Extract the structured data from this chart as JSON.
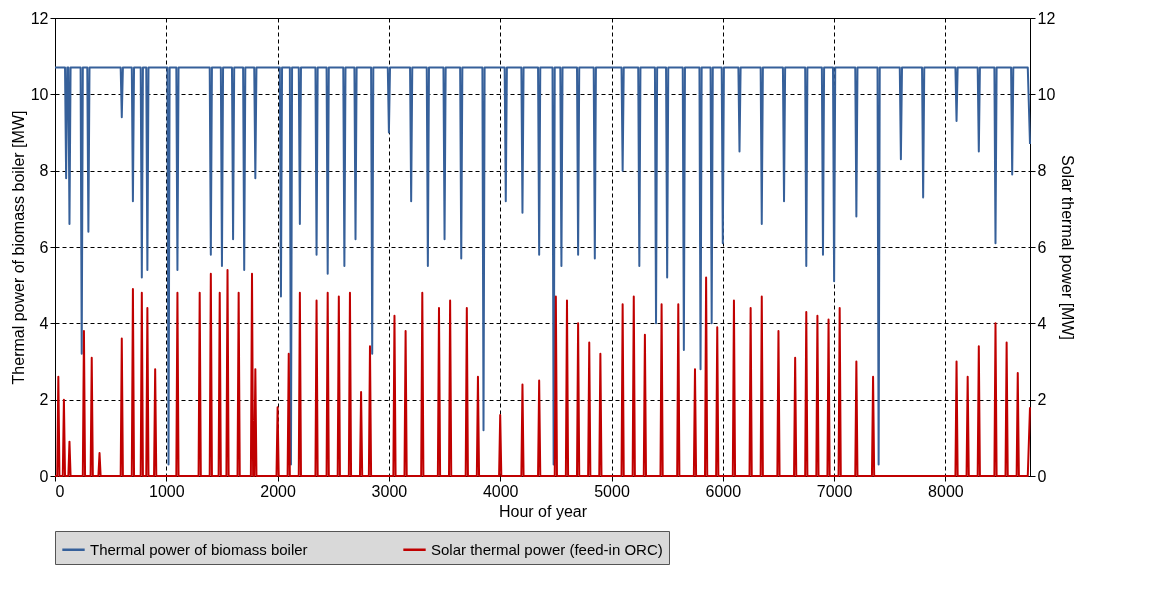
{
  "chart_data": {
    "type": "line",
    "xlabel": "Hour of year",
    "ylabel": "Thermal power of biomass boiler [MW]",
    "y2label": "Solar thermal power [MW]",
    "xlim": [
      0,
      8760
    ],
    "xticks": [
      0,
      1000,
      2000,
      3000,
      4000,
      5000,
      6000,
      7000,
      8000
    ],
    "ylim": [
      0,
      12
    ],
    "yticks": [
      0,
      2,
      4,
      6,
      8,
      10,
      12
    ],
    "y2lim": [
      0,
      12
    ],
    "y2ticks": [
      0,
      2,
      4,
      6,
      8,
      10,
      12
    ],
    "grid": true,
    "legend": "bottom",
    "line_style": "solid",
    "marker": "none",
    "series": [
      {
        "name": "Thermal power of biomass boiler",
        "color": "#36609a",
        "x": [
          0,
          90,
          100,
          110,
          120,
          130,
          140,
          230,
          240,
          250,
          290,
          300,
          310,
          590,
          600,
          610,
          690,
          700,
          710,
          770,
          780,
          790,
          820,
          830,
          840,
          1010,
          1020,
          1030,
          1090,
          1100,
          1110,
          1390,
          1400,
          1410,
          1490,
          1500,
          1510,
          1590,
          1600,
          1610,
          1690,
          1700,
          1710,
          1790,
          1800,
          1810,
          2020,
          2030,
          2040,
          2110,
          2120,
          2130,
          2190,
          2200,
          2210,
          2340,
          2350,
          2360,
          2440,
          2450,
          2460,
          2590,
          2600,
          2610,
          2690,
          2700,
          2710,
          2840,
          2850,
          2860,
          2990,
          3000,
          3010,
          3190,
          3200,
          3210,
          3340,
          3350,
          3360,
          3490,
          3500,
          3510,
          3640,
          3650,
          3660,
          3840,
          3850,
          3860,
          4040,
          4050,
          4060,
          4190,
          4200,
          4210,
          4340,
          4350,
          4360,
          4470,
          4480,
          4490,
          4540,
          4550,
          4560,
          4690,
          4700,
          4710,
          4840,
          4850,
          4860,
          5090,
          5100,
          5110,
          5240,
          5250,
          5260,
          5390,
          5400,
          5410,
          5490,
          5500,
          5510,
          5640,
          5650,
          5660,
          5790,
          5800,
          5810,
          5890,
          5900,
          5910,
          5990,
          6000,
          6010,
          6140,
          6150,
          6160,
          6340,
          6350,
          6360,
          6540,
          6550,
          6560,
          6740,
          6750,
          6760,
          6890,
          6900,
          6910,
          6990,
          7000,
          7010,
          7190,
          7200,
          7210,
          7390,
          7400,
          7410,
          7590,
          7600,
          7610,
          7790,
          7800,
          7810,
          8090,
          8100,
          8110,
          8290,
          8300,
          8310,
          8440,
          8450,
          8460,
          8590,
          8600,
          8610,
          8740,
          8760
        ],
        "values": [
          10.7,
          10.7,
          7.8,
          10.7,
          10.7,
          6.6,
          10.7,
          10.7,
          3.2,
          10.7,
          10.7,
          6.4,
          10.7,
          10.7,
          9.4,
          10.7,
          10.7,
          7.2,
          10.7,
          10.7,
          5.2,
          10.7,
          10.7,
          5.4,
          10.7,
          10.7,
          0.3,
          10.7,
          10.7,
          5.4,
          10.7,
          10.7,
          5.8,
          10.7,
          10.7,
          5.5,
          10.7,
          10.7,
          6.2,
          10.7,
          10.7,
          5.4,
          10.7,
          10.7,
          7.8,
          10.7,
          10.7,
          4.7,
          10.7,
          10.7,
          0.3,
          10.7,
          10.7,
          6.6,
          10.7,
          10.7,
          5.8,
          10.7,
          10.7,
          5.3,
          10.7,
          10.7,
          5.5,
          10.7,
          10.7,
          6.2,
          10.7,
          10.7,
          3.2,
          10.7,
          10.7,
          9.0,
          10.7,
          10.7,
          7.2,
          10.7,
          10.7,
          5.5,
          10.7,
          10.7,
          6.2,
          10.7,
          10.7,
          5.7,
          10.7,
          10.7,
          1.2,
          10.7,
          10.7,
          7.2,
          10.7,
          10.7,
          6.9,
          10.7,
          10.7,
          5.8,
          10.7,
          10.7,
          0.3,
          10.7,
          10.7,
          5.5,
          10.7,
          10.7,
          5.8,
          10.7,
          10.7,
          5.7,
          10.7,
          10.7,
          8.0,
          10.7,
          10.7,
          5.5,
          10.7,
          10.7,
          4.0,
          10.7,
          10.7,
          5.2,
          10.7,
          10.7,
          3.3,
          10.7,
          10.7,
          2.8,
          10.7,
          10.7,
          4.0,
          10.7,
          10.7,
          6.1,
          10.7,
          10.7,
          8.5,
          10.7,
          10.7,
          6.6,
          10.7,
          10.7,
          7.2,
          10.7,
          10.7,
          5.5,
          10.7,
          10.7,
          5.8,
          10.7,
          10.7,
          5.1,
          10.7,
          10.7,
          6.8,
          10.7,
          10.7,
          0.3,
          10.7,
          10.7,
          8.3,
          10.7,
          10.7,
          7.3,
          10.7,
          10.7,
          9.3,
          10.7,
          10.7,
          8.5,
          10.7,
          10.7,
          6.1,
          10.7,
          10.7,
          7.9,
          10.7,
          10.7,
          8.7
        ]
      },
      {
        "name": "Solar thermal power (feed-in ORC)",
        "color": "#c00000",
        "axis": "y2",
        "x": [
          0,
          20,
          30,
          40,
          70,
          80,
          90,
          120,
          130,
          140,
          250,
          260,
          270,
          320,
          330,
          340,
          390,
          400,
          410,
          590,
          600,
          610,
          690,
          700,
          710,
          770,
          780,
          790,
          820,
          830,
          840,
          890,
          900,
          910,
          1090,
          1100,
          1110,
          1290,
          1300,
          1310,
          1390,
          1400,
          1410,
          1470,
          1480,
          1490,
          1540,
          1550,
          1560,
          1640,
          1650,
          1660,
          1760,
          1770,
          1780,
          1790,
          1800,
          1810,
          1990,
          2000,
          2010,
          2090,
          2100,
          2110,
          2190,
          2200,
          2210,
          2340,
          2350,
          2360,
          2440,
          2450,
          2460,
          2540,
          2550,
          2560,
          2640,
          2650,
          2660,
          2740,
          2750,
          2760,
          2820,
          2830,
          2840,
          3040,
          3050,
          3060,
          3140,
          3150,
          3160,
          3290,
          3300,
          3310,
          3440,
          3450,
          3460,
          3540,
          3550,
          3560,
          3690,
          3700,
          3710,
          3790,
          3800,
          3810,
          3990,
          4000,
          4010,
          4190,
          4200,
          4210,
          4340,
          4350,
          4360,
          4490,
          4500,
          4510,
          4590,
          4600,
          4610,
          4690,
          4700,
          4710,
          4790,
          4800,
          4810,
          4890,
          4900,
          4910,
          5090,
          5100,
          5110,
          5190,
          5200,
          5210,
          5290,
          5300,
          5310,
          5440,
          5450,
          5460,
          5590,
          5600,
          5610,
          5740,
          5750,
          5760,
          5840,
          5850,
          5860,
          5940,
          5950,
          5960,
          6090,
          6100,
          6110,
          6240,
          6250,
          6260,
          6340,
          6350,
          6360,
          6490,
          6500,
          6510,
          6640,
          6650,
          6660,
          6740,
          6750,
          6760,
          6840,
          6850,
          6860,
          6940,
          6950,
          6960,
          7040,
          7050,
          7060,
          7190,
          7200,
          7210,
          7340,
          7350,
          7360,
          8090,
          8100,
          8110,
          8190,
          8200,
          8210,
          8290,
          8300,
          8310,
          8440,
          8450,
          8460,
          8540,
          8550,
          8560,
          8640,
          8650,
          8660,
          8740,
          8760
        ],
        "values": [
          0,
          0,
          2.6,
          0,
          0,
          2.0,
          0,
          0,
          0.9,
          0,
          0,
          3.8,
          0,
          0,
          3.1,
          0,
          0,
          0.6,
          0,
          0,
          3.6,
          0,
          0,
          4.9,
          0,
          0,
          4.8,
          0,
          0,
          4.4,
          0,
          0,
          2.8,
          0,
          0,
          4.8,
          0,
          0,
          4.8,
          0,
          0,
          5.3,
          0,
          0,
          4.8,
          0,
          0,
          5.4,
          0,
          0,
          4.8,
          0,
          0,
          5.3,
          0,
          0,
          2.8,
          0,
          0,
          1.8,
          0,
          0,
          3.2,
          0,
          0,
          4.8,
          0,
          0,
          4.6,
          0,
          0,
          4.8,
          0,
          0,
          4.7,
          0,
          0,
          4.8,
          0,
          0,
          2.2,
          0,
          0,
          3.4,
          0,
          0,
          4.2,
          0,
          0,
          3.8,
          0,
          0,
          4.8,
          0,
          0,
          4.4,
          0,
          0,
          4.6,
          0,
          0,
          4.4,
          0,
          0,
          2.6,
          0,
          0,
          1.6,
          0,
          0,
          2.4,
          0,
          0,
          2.5,
          0,
          0,
          4.7,
          0,
          0,
          4.6,
          0,
          0,
          4.0,
          0,
          0,
          3.5,
          0,
          0,
          3.2,
          0,
          0,
          4.5,
          0,
          0,
          4.7,
          0,
          0,
          3.7,
          0,
          0,
          4.5,
          0,
          0,
          4.5,
          0,
          0,
          2.8,
          0,
          0,
          5.2,
          0,
          0,
          3.9,
          0,
          0,
          4.6,
          0,
          0,
          4.4,
          0,
          0,
          4.7,
          0,
          0,
          3.8,
          0,
          0,
          3.1,
          0,
          0,
          4.3,
          0,
          0,
          4.2,
          0,
          0,
          4.1,
          0,
          0,
          4.4,
          0,
          0,
          3.0,
          0,
          0,
          2.6,
          0,
          0,
          3.0,
          0,
          0,
          2.6,
          0,
          0,
          3.4,
          0,
          0,
          4.0,
          0,
          0,
          3.5,
          0,
          0,
          2.7,
          0,
          0,
          1.8
        ]
      }
    ]
  }
}
